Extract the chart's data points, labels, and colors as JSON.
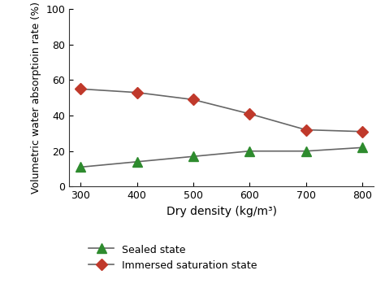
{
  "x": [
    300,
    400,
    500,
    600,
    700,
    800
  ],
  "sealed_state": [
    11,
    14,
    17,
    20,
    20,
    22
  ],
  "immersed_state": [
    55,
    53,
    49,
    41,
    32,
    31
  ],
  "xlabel": "Dry density (kg/m³)",
  "ylabel": "Volumetric water absorptioin rate (%)",
  "xlim": [
    280,
    820
  ],
  "ylim": [
    0,
    100
  ],
  "yticks": [
    0,
    20,
    40,
    60,
    80,
    100
  ],
  "xticks": [
    300,
    400,
    500,
    600,
    700,
    800
  ],
  "line_color": "#666666",
  "sealed_marker_color": "#2e8b2e",
  "immersed_marker_color": "#c0392b",
  "legend_sealed": "Sealed state",
  "legend_immersed": "Immersed saturation state",
  "bg_color": "#ffffff",
  "tick_labelsize": 9,
  "xlabel_fontsize": 10,
  "ylabel_fontsize": 9,
  "legend_fontsize": 9
}
